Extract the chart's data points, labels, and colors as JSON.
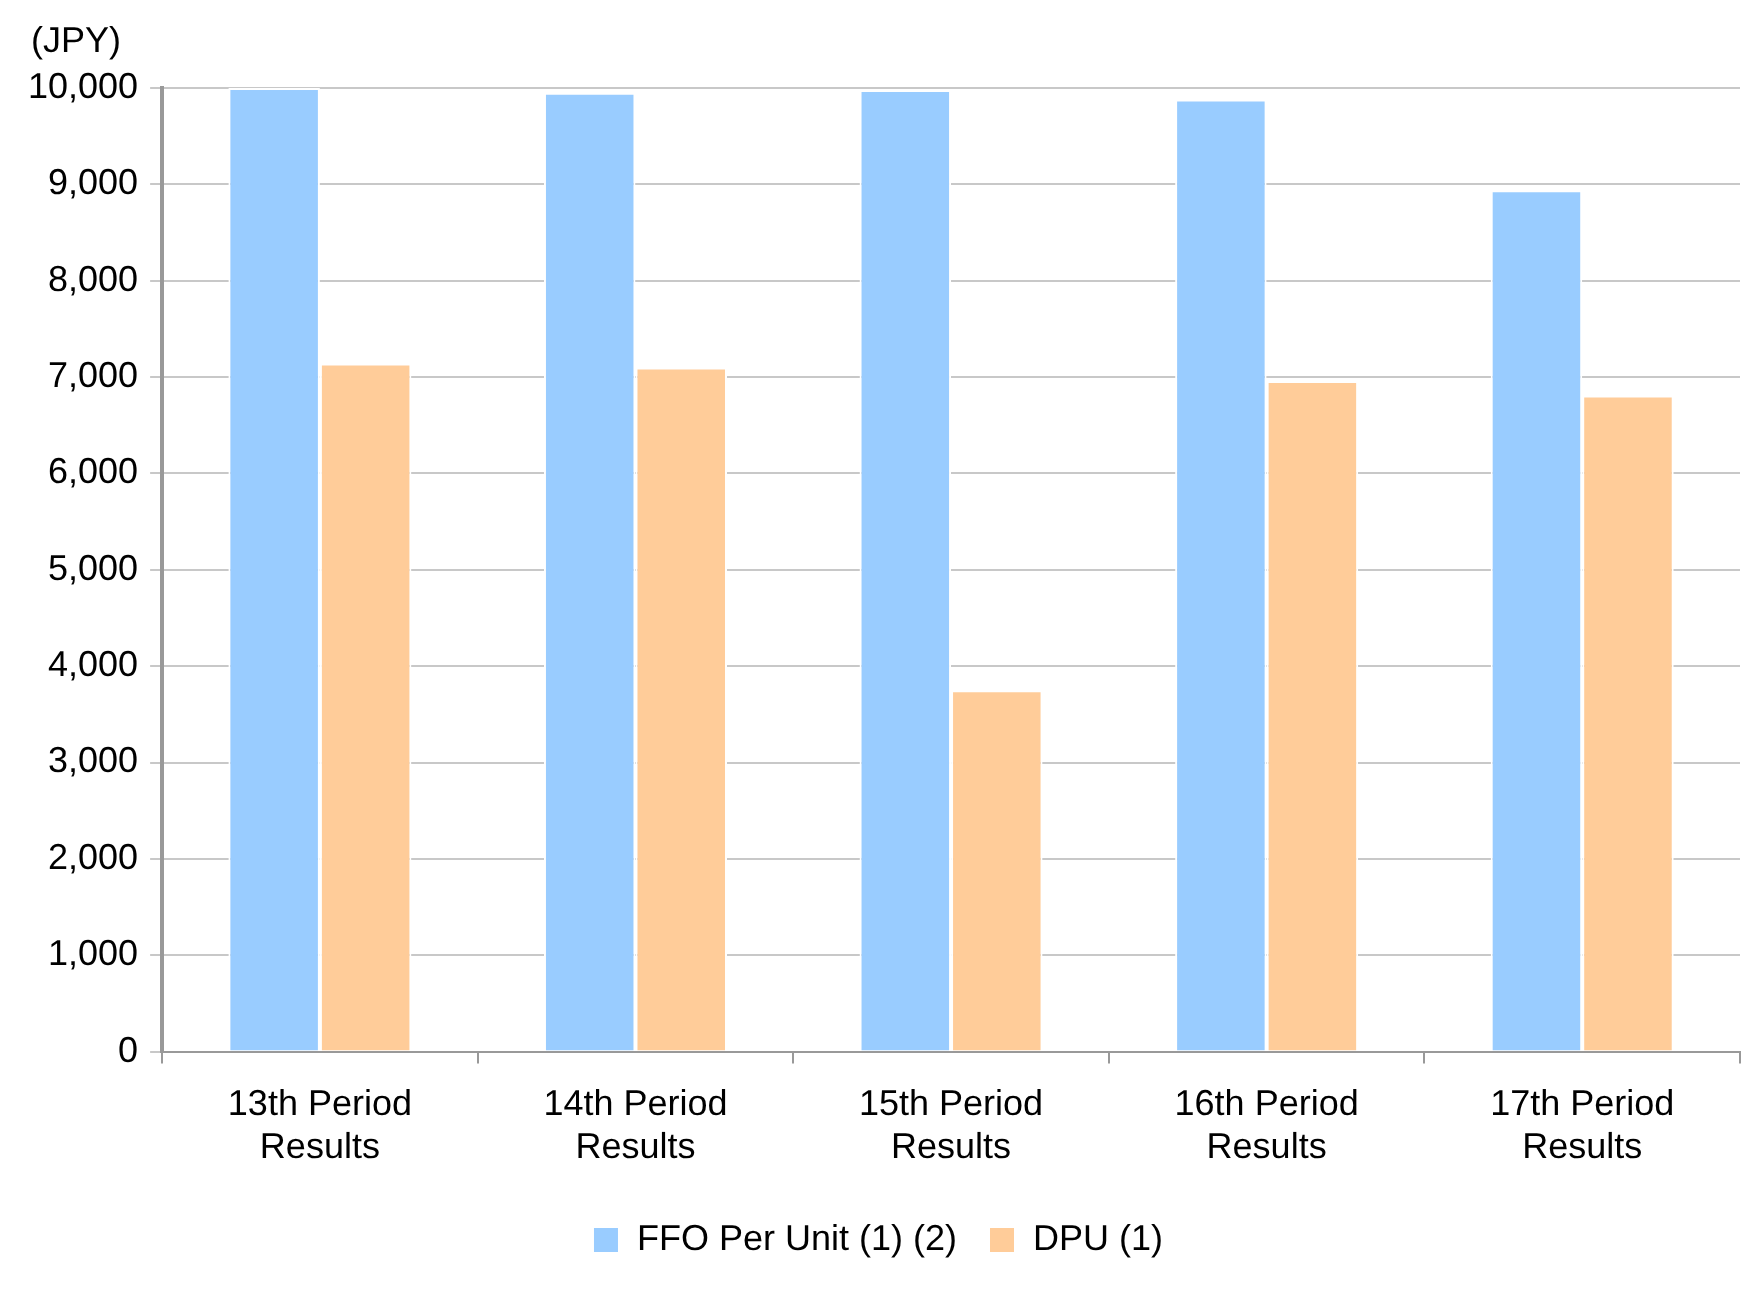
{
  "chart_data": {
    "type": "bar",
    "ylabel": "(JPY)",
    "categories": [
      "13th Period Results",
      "14th Period Results",
      "15th Period Results",
      "16th Period Results",
      "17th Period Results"
    ],
    "series": [
      {
        "name": "FFO Per Unit (1) (2)",
        "color": "#99ccff",
        "values": [
          10000,
          9950,
          9980,
          9880,
          8940
        ]
      },
      {
        "name": "DPU (1)",
        "color": "#ffcc99",
        "values": [
          7140,
          7100,
          3750,
          6960,
          6810
        ]
      }
    ],
    "ylim": [
      0,
      10000
    ],
    "yticks": [
      0,
      {
        "value": 1000,
        "label": "1,000"
      },
      {
        "value": 2000,
        "label": "2,000"
      },
      {
        "value": 3000,
        "label": "3,000"
      },
      {
        "value": 4000,
        "label": "4,000"
      },
      {
        "value": 5000,
        "label": "5,000"
      },
      {
        "value": 6000,
        "label": "6,000"
      },
      {
        "value": 7000,
        "label": "7,000"
      },
      {
        "value": 8000,
        "label": "8,000"
      },
      {
        "value": 9000,
        "label": "9,000"
      },
      {
        "value": 10000,
        "label": "10,000"
      }
    ],
    "grid": "y",
    "legend": "bottom"
  }
}
